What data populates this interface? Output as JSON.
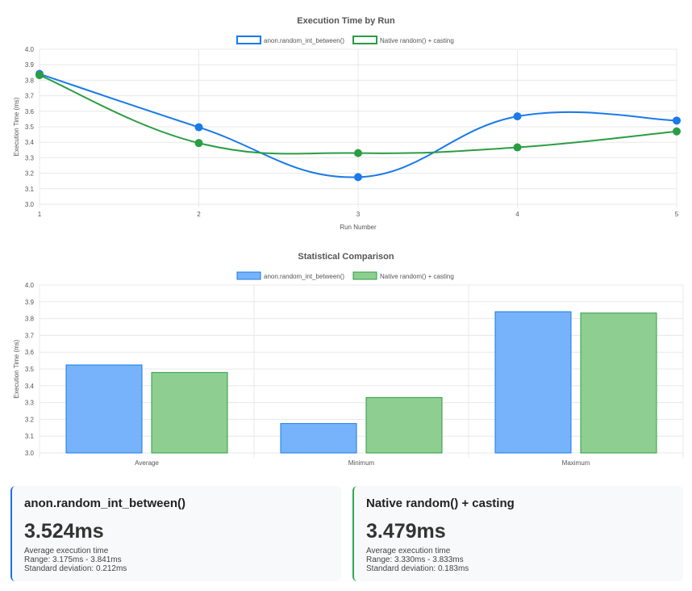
{
  "colors": {
    "series1_stroke": "#1a7ae8",
    "series1_fill": "#77b3fa",
    "series2_stroke": "#2a9d43",
    "series2_fill": "#8ecf91",
    "grid": "#e8e8e8",
    "text": "#555555",
    "title": "#555555"
  },
  "chart_data": [
    {
      "type": "line",
      "title": "Execution Time by Run",
      "xlabel": "Run Number",
      "ylabel": "Execution Time (ms)",
      "x": [
        1,
        2,
        3,
        4,
        5
      ],
      "x_tick_labels": [
        "1",
        "2",
        "3",
        "4",
        "5"
      ],
      "ylim": [
        3.0,
        4.0
      ],
      "y_tick_labels": [
        "4.0",
        "3.9",
        "3.8",
        "3.7",
        "3.6",
        "3.5",
        "3.4",
        "3.3",
        "3.2",
        "3.1",
        "3.0"
      ],
      "grid": true,
      "legend_position": "top-center",
      "series": [
        {
          "name": "anon.random_int_between()",
          "values": [
            3.841,
            3.497,
            3.175,
            3.567,
            3.54
          ]
        },
        {
          "name": "Native random() + casting",
          "values": [
            3.833,
            3.395,
            3.33,
            3.367,
            3.47
          ]
        }
      ]
    },
    {
      "type": "bar",
      "title": "Statistical Comparison",
      "xlabel": "",
      "ylabel": "Execution Time (ms)",
      "categories": [
        "Average",
        "Minimum",
        "Maximum"
      ],
      "ylim": [
        3.0,
        4.0
      ],
      "y_tick_labels": [
        "4.0",
        "3.9",
        "3.8",
        "3.7",
        "3.6",
        "3.5",
        "3.4",
        "3.3",
        "3.2",
        "3.1",
        "3.0"
      ],
      "grid": true,
      "legend_position": "top-center",
      "series": [
        {
          "name": "anon.random_int_between()",
          "values": [
            3.524,
            3.175,
            3.841
          ]
        },
        {
          "name": "Native random() + casting",
          "values": [
            3.479,
            3.33,
            3.833
          ]
        }
      ]
    }
  ],
  "cards": [
    {
      "title": "anon.random_int_between()",
      "value": "3.524ms",
      "caption": "Average execution time",
      "range": "Range: 3.175ms - 3.841ms",
      "stddev": "Standard deviation: 0.212ms"
    },
    {
      "title": "Native random() + casting",
      "value": "3.479ms",
      "caption": "Average execution time",
      "range": "Range: 3.330ms - 3.833ms",
      "stddev": "Standard deviation: 0.183ms"
    }
  ]
}
